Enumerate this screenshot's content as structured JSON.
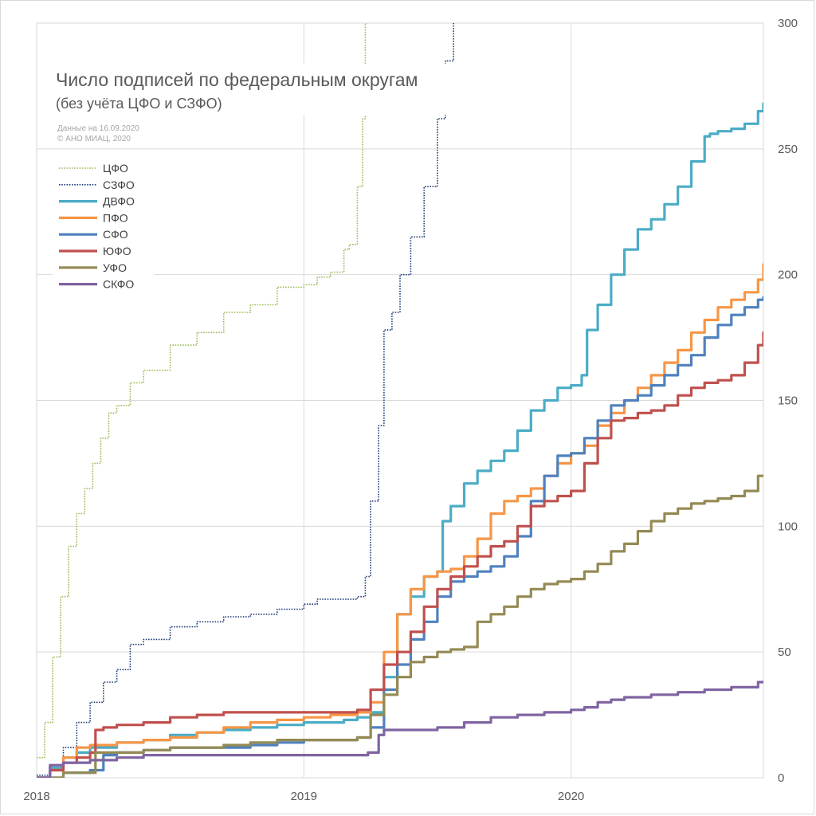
{
  "chart_data": {
    "type": "line",
    "title": "Число подписей по федеральным округам",
    "subtitle": "(без учёта ЦФО и СЗФО)",
    "note_lines": [
      "Данные на 16.09.2020",
      "© АНО МИАЦ, 2020"
    ],
    "x_ticks": [
      "2018",
      "2019",
      "2020"
    ],
    "xlim": [
      2018.0,
      2020.72
    ],
    "ylim": [
      0,
      300
    ],
    "y_ticks": [
      "0",
      "50",
      "100",
      "150",
      "200",
      "250",
      "300"
    ],
    "y_axis_side": "right",
    "grid": true,
    "legend_position": "top-left",
    "series": [
      {
        "name": "ЦФО",
        "color": "#9bbb59",
        "style": "dotted",
        "x": [
          2018.0,
          2018.03,
          2018.06,
          2018.09,
          2018.12,
          2018.15,
          2018.18,
          2018.21,
          2018.24,
          2018.27,
          2018.3,
          2018.35,
          2018.4,
          2018.5,
          2018.6,
          2018.7,
          2018.8,
          2018.9,
          2018.95,
          2019.0,
          2019.05,
          2019.1,
          2019.15,
          2019.17,
          2019.2,
          2019.22,
          2019.23,
          2019.24
        ],
        "y": [
          8,
          22,
          48,
          72,
          92,
          105,
          115,
          125,
          135,
          145,
          148,
          157,
          162,
          172,
          177,
          185,
          188,
          195,
          195,
          196,
          199,
          201,
          210,
          212,
          235,
          262,
          300,
          300
        ]
      },
      {
        "name": "СЗФО",
        "color": "#1f3d7a",
        "style": "dotted",
        "x": [
          2018.0,
          2018.05,
          2018.1,
          2018.15,
          2018.2,
          2018.25,
          2018.3,
          2018.35,
          2018.4,
          2018.5,
          2018.6,
          2018.7,
          2018.8,
          2018.9,
          2019.0,
          2019.05,
          2019.1,
          2019.15,
          2019.2,
          2019.23,
          2019.25,
          2019.28,
          2019.3,
          2019.33,
          2019.36,
          2019.4,
          2019.45,
          2019.5,
          2019.53,
          2019.56
        ],
        "y": [
          1,
          4,
          12,
          22,
          30,
          38,
          43,
          53,
          55,
          60,
          62,
          64,
          65,
          67,
          69,
          71,
          71,
          71,
          72,
          80,
          110,
          140,
          178,
          185,
          200,
          215,
          235,
          262,
          285,
          300
        ]
      },
      {
        "name": "ДВФО",
        "color": "#4bacc6",
        "style": "solid",
        "x": [
          2018.0,
          2018.05,
          2018.1,
          2018.15,
          2018.2,
          2018.3,
          2018.4,
          2018.5,
          2018.6,
          2018.7,
          2018.8,
          2018.9,
          2019.0,
          2019.1,
          2019.15,
          2019.2,
          2019.25,
          2019.3,
          2019.35,
          2019.4,
          2019.45,
          2019.5,
          2019.52,
          2019.55,
          2019.6,
          2019.65,
          2019.7,
          2019.75,
          2019.8,
          2019.85,
          2019.9,
          2019.95,
          2020.0,
          2020.04,
          2020.06,
          2020.1,
          2020.15,
          2020.2,
          2020.25,
          2020.3,
          2020.35,
          2020.4,
          2020.45,
          2020.5,
          2020.52,
          2020.55,
          2020.6,
          2020.65,
          2020.7,
          2020.72
        ],
        "y": [
          0,
          4,
          8,
          10,
          12,
          14,
          15,
          17,
          18,
          19,
          20,
          21,
          22,
          22,
          23,
          24,
          26,
          40,
          65,
          72,
          80,
          82,
          102,
          108,
          117,
          122,
          126,
          130,
          138,
          146,
          150,
          155,
          156,
          160,
          178,
          188,
          200,
          210,
          218,
          222,
          228,
          235,
          245,
          255,
          256,
          257,
          258,
          260,
          265,
          268
        ]
      },
      {
        "name": "ПФО",
        "color": "#f79646",
        "style": "solid",
        "x": [
          2018.0,
          2018.05,
          2018.1,
          2018.15,
          2018.2,
          2018.3,
          2018.4,
          2018.5,
          2018.6,
          2018.7,
          2018.8,
          2018.9,
          2019.0,
          2019.1,
          2019.15,
          2019.2,
          2019.25,
          2019.3,
          2019.35,
          2019.4,
          2019.45,
          2019.5,
          2019.55,
          2019.6,
          2019.65,
          2019.7,
          2019.75,
          2019.8,
          2019.85,
          2019.9,
          2019.95,
          2020.0,
          2020.05,
          2020.1,
          2020.15,
          2020.2,
          2020.25,
          2020.3,
          2020.35,
          2020.4,
          2020.45,
          2020.5,
          2020.55,
          2020.6,
          2020.65,
          2020.7,
          2020.72
        ],
        "y": [
          0,
          3,
          8,
          12,
          13,
          14,
          15,
          16,
          18,
          20,
          22,
          23,
          24,
          25,
          25,
          26,
          30,
          50,
          65,
          75,
          80,
          82,
          83,
          88,
          95,
          105,
          110,
          112,
          115,
          120,
          125,
          129,
          132,
          140,
          145,
          150,
          155,
          160,
          165,
          170,
          177,
          182,
          187,
          190,
          193,
          198,
          204
        ]
      },
      {
        "name": "СФО",
        "color": "#4f81bd",
        "style": "solid",
        "x": [
          2018.0,
          2018.1,
          2018.2,
          2018.25,
          2018.3,
          2018.4,
          2018.5,
          2018.6,
          2018.7,
          2018.8,
          2018.9,
          2019.0,
          2019.1,
          2019.15,
          2019.2,
          2019.25,
          2019.3,
          2019.35,
          2019.4,
          2019.45,
          2019.5,
          2019.55,
          2019.6,
          2019.65,
          2019.7,
          2019.75,
          2019.8,
          2019.85,
          2019.9,
          2019.95,
          2020.0,
          2020.05,
          2020.1,
          2020.15,
          2020.2,
          2020.25,
          2020.3,
          2020.35,
          2020.4,
          2020.45,
          2020.5,
          2020.55,
          2020.6,
          2020.65,
          2020.7,
          2020.72
        ],
        "y": [
          0,
          2,
          3,
          9,
          10,
          11,
          12,
          12,
          12,
          13,
          14,
          15,
          15,
          15,
          16,
          20,
          35,
          45,
          55,
          62,
          72,
          78,
          80,
          82,
          84,
          88,
          96,
          110,
          120,
          128,
          129,
          135,
          142,
          148,
          150,
          152,
          156,
          160,
          164,
          168,
          175,
          180,
          184,
          187,
          190,
          191
        ]
      },
      {
        "name": "ЮФО",
        "color": "#c0504d",
        "style": "solid",
        "x": [
          2018.0,
          2018.05,
          2018.1,
          2018.15,
          2018.2,
          2018.22,
          2018.25,
          2018.3,
          2018.4,
          2018.5,
          2018.6,
          2018.7,
          2018.8,
          2018.9,
          2019.0,
          2019.1,
          2019.15,
          2019.2,
          2019.25,
          2019.3,
          2019.35,
          2019.4,
          2019.45,
          2019.5,
          2019.55,
          2019.6,
          2019.65,
          2019.7,
          2019.75,
          2019.8,
          2019.85,
          2019.9,
          2019.95,
          2020.0,
          2020.05,
          2020.1,
          2020.15,
          2020.2,
          2020.25,
          2020.3,
          2020.35,
          2020.4,
          2020.45,
          2020.5,
          2020.55,
          2020.6,
          2020.65,
          2020.7,
          2020.72
        ],
        "y": [
          0,
          3,
          6,
          8,
          10,
          19,
          20,
          21,
          22,
          24,
          25,
          26,
          26,
          26,
          26,
          26,
          26,
          27,
          35,
          45,
          50,
          58,
          68,
          75,
          80,
          84,
          88,
          92,
          94,
          100,
          108,
          110,
          112,
          114,
          125,
          135,
          142,
          143,
          145,
          146,
          148,
          152,
          155,
          157,
          158,
          160,
          165,
          172,
          177
        ]
      },
      {
        "name": "УФО",
        "color": "#948a54",
        "style": "solid",
        "x": [
          2018.0,
          2018.1,
          2018.2,
          2018.22,
          2018.3,
          2018.4,
          2018.5,
          2018.6,
          2018.7,
          2018.8,
          2018.9,
          2019.0,
          2019.1,
          2019.15,
          2019.2,
          2019.24,
          2019.25,
          2019.3,
          2019.35,
          2019.4,
          2019.45,
          2019.5,
          2019.55,
          2019.6,
          2019.65,
          2019.7,
          2019.75,
          2019.8,
          2019.85,
          2019.9,
          2019.95,
          2020.0,
          2020.05,
          2020.1,
          2020.15,
          2020.2,
          2020.25,
          2020.3,
          2020.35,
          2020.4,
          2020.45,
          2020.5,
          2020.55,
          2020.6,
          2020.65,
          2020.7,
          2020.72
        ],
        "y": [
          0,
          2,
          2,
          10,
          10,
          11,
          12,
          12,
          13,
          14,
          15,
          15,
          15,
          15,
          16,
          16,
          25,
          33,
          40,
          46,
          48,
          50,
          51,
          52,
          62,
          65,
          68,
          72,
          75,
          77,
          78,
          79,
          82,
          85,
          90,
          93,
          98,
          102,
          105,
          107,
          109,
          110,
          111,
          112,
          114,
          120,
          120
        ]
      },
      {
        "name": "СКФО",
        "color": "#8064a2",
        "style": "solid",
        "x": [
          2018.0,
          2018.05,
          2018.1,
          2018.2,
          2018.3,
          2018.4,
          2018.5,
          2018.6,
          2018.7,
          2018.8,
          2018.9,
          2019.0,
          2019.1,
          2019.2,
          2019.24,
          2019.28,
          2019.3,
          2019.4,
          2019.5,
          2019.6,
          2019.7,
          2019.8,
          2019.9,
          2020.0,
          2020.05,
          2020.1,
          2020.15,
          2020.2,
          2020.3,
          2020.4,
          2020.5,
          2020.6,
          2020.7,
          2020.72
        ],
        "y": [
          0,
          5,
          6,
          7,
          8,
          9,
          9,
          9,
          9,
          9,
          9,
          9,
          9,
          9,
          10,
          17,
          19,
          19,
          20,
          22,
          24,
          25,
          26,
          27,
          28,
          30,
          31,
          32,
          33,
          34,
          35,
          36,
          38,
          38
        ]
      }
    ]
  }
}
